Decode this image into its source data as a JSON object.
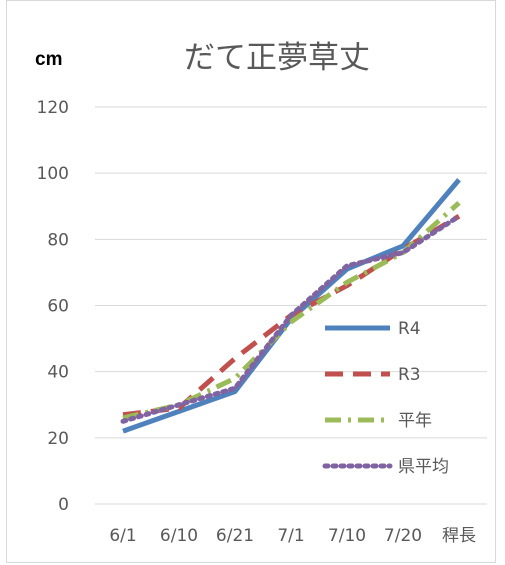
{
  "chart_data": {
    "type": "line",
    "title": "だて正夢草丈",
    "ylabel": "cm",
    "xlabel": "",
    "categories": [
      "6/1",
      "6/10",
      "6/21",
      "7/1",
      "7/10",
      "7/20",
      "稈長"
    ],
    "ylim": [
      0,
      120
    ],
    "yticks": [
      0,
      20,
      40,
      60,
      80,
      100,
      120
    ],
    "grid": true,
    "legend_position": "right",
    "series": [
      {
        "name": "R4",
        "values": [
          22,
          28,
          34,
          56,
          71,
          78,
          98
        ],
        "color": "#4f81bd",
        "style": "solid"
      },
      {
        "name": "R3",
        "values": [
          27,
          29,
          44,
          57,
          66,
          77,
          87
        ],
        "color": "#c0504d",
        "style": "dash"
      },
      {
        "name": "平年",
        "values": [
          26,
          30,
          38,
          55,
          67,
          76,
          91
        ],
        "color": "#9bbb59",
        "style": "dashdot"
      },
      {
        "name": "県平均",
        "values": [
          25,
          30,
          35,
          57,
          72,
          76,
          87
        ],
        "color": "#8064a2",
        "style": "dot"
      }
    ]
  }
}
